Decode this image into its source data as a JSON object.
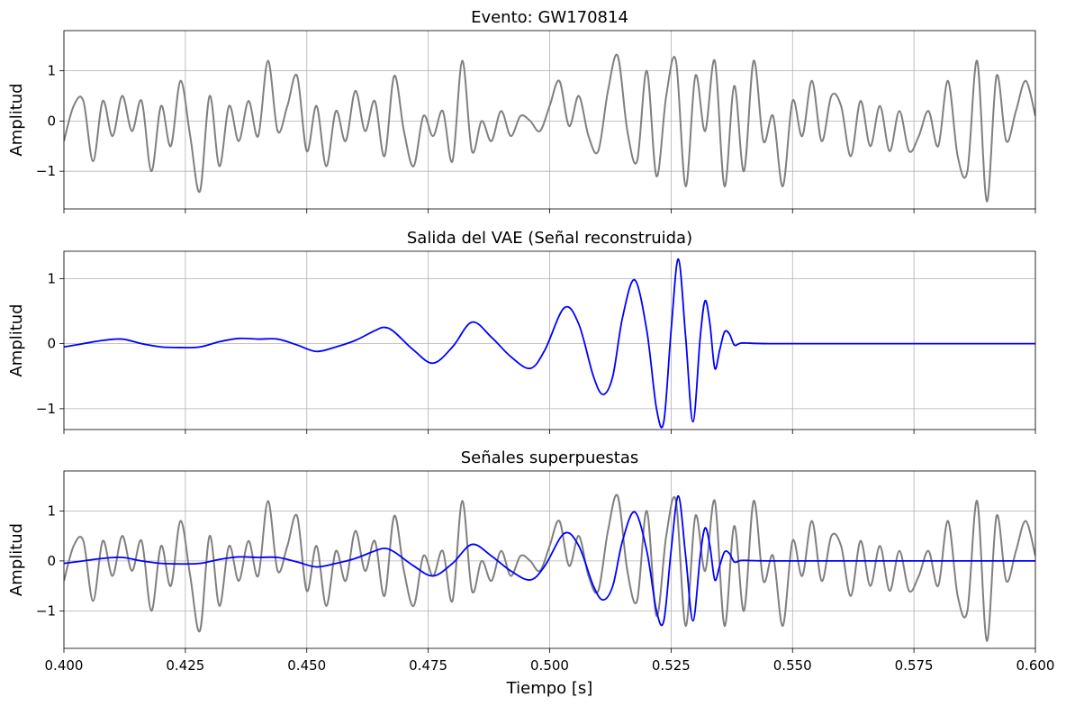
{
  "colors": {
    "raw": "#808080",
    "vae": "#0000ff",
    "grid": "#b0b0b0"
  },
  "chart_data": [
    {
      "type": "line",
      "title": "Evento: GW170814",
      "ylabel": "Amplitud",
      "xlim": [
        0.4,
        0.6
      ],
      "ylim": [
        -1.75,
        1.8
      ],
      "yticks": [
        -1,
        0,
        1
      ],
      "ytick_labels": [
        "−1",
        "0",
        "1"
      ],
      "series": [
        {
          "color": "#808080",
          "x": [
            0.4,
            0.402,
            0.404,
            0.406,
            0.408,
            0.41,
            0.412,
            0.414,
            0.416,
            0.418,
            0.42,
            0.422,
            0.424,
            0.426,
            0.428,
            0.43,
            0.432,
            0.434,
            0.436,
            0.438,
            0.44,
            0.442,
            0.444,
            0.446,
            0.448,
            0.45,
            0.452,
            0.454,
            0.456,
            0.458,
            0.46,
            0.462,
            0.464,
            0.466,
            0.468,
            0.47,
            0.472,
            0.474,
            0.476,
            0.478,
            0.48,
            0.482,
            0.484,
            0.486,
            0.488,
            0.49,
            0.492,
            0.494,
            0.496,
            0.498,
            0.5,
            0.502,
            0.504,
            0.506,
            0.508,
            0.51,
            0.512,
            0.514,
            0.516,
            0.518,
            0.52,
            0.522,
            0.524,
            0.526,
            0.528,
            0.53,
            0.532,
            0.534,
            0.536,
            0.538,
            0.54,
            0.542,
            0.544,
            0.546,
            0.548,
            0.55,
            0.552,
            0.554,
            0.556,
            0.558,
            0.56,
            0.562,
            0.564,
            0.566,
            0.568,
            0.57,
            0.572,
            0.574,
            0.576,
            0.578,
            0.58,
            0.582,
            0.584,
            0.586,
            0.588,
            0.59,
            0.592,
            0.594,
            0.596,
            0.598,
            0.6
          ],
          "y": [
            -0.4,
            0.3,
            0.4,
            -0.8,
            0.4,
            -0.3,
            0.5,
            -0.2,
            0.4,
            -1.0,
            0.3,
            -0.5,
            0.8,
            -0.3,
            -1.4,
            0.5,
            -0.9,
            0.3,
            -0.4,
            0.4,
            -0.3,
            1.2,
            -0.2,
            0.3,
            0.9,
            -0.6,
            0.3,
            -0.9,
            0.2,
            -0.4,
            0.6,
            -0.2,
            0.4,
            -0.7,
            0.9,
            -0.2,
            -0.9,
            0.1,
            -0.3,
            0.2,
            -0.8,
            1.2,
            -0.6,
            0.0,
            -0.4,
            0.2,
            -0.3,
            0.1,
            0.0,
            -0.2,
            0.3,
            0.8,
            -0.1,
            0.5,
            -0.3,
            -0.6,
            0.6,
            1.3,
            -0.2,
            -0.8,
            1.0,
            -1.1,
            0.5,
            1.2,
            -1.3,
            0.9,
            -0.2,
            1.2,
            -1.3,
            0.7,
            -1.0,
            1.2,
            -0.4,
            0.1,
            -1.3,
            0.4,
            -0.3,
            0.8,
            -0.4,
            0.5,
            0.3,
            -0.7,
            0.4,
            -0.5,
            0.3,
            -0.6,
            0.2,
            -0.6,
            -0.3,
            0.2,
            -0.5,
            0.8,
            -0.7,
            -1.0,
            1.2,
            -1.6,
            0.9,
            -0.4,
            0.2,
            0.8,
            0.1
          ]
        }
      ]
    },
    {
      "type": "line",
      "title": "Salida del VAE (Señal reconstruida)",
      "ylabel": "Amplitud",
      "xlim": [
        0.4,
        0.6
      ],
      "ylim": [
        -1.32,
        1.42
      ],
      "yticks": [
        -1,
        0,
        1
      ],
      "ytick_labels": [
        "−1",
        "0",
        "1"
      ],
      "series": [
        {
          "color": "#0000ff",
          "x": [
            0.4,
            0.404,
            0.408,
            0.412,
            0.416,
            0.42,
            0.424,
            0.428,
            0.432,
            0.436,
            0.44,
            0.444,
            0.448,
            0.452,
            0.456,
            0.46,
            0.464,
            0.466,
            0.468,
            0.472,
            0.476,
            0.48,
            0.484,
            0.488,
            0.492,
            0.496,
            0.499,
            0.503,
            0.506,
            0.509,
            0.511,
            0.513,
            0.515,
            0.5175,
            0.52,
            0.522,
            0.5235,
            0.525,
            0.5265,
            0.528,
            0.5295,
            0.531,
            0.532,
            0.533,
            0.534,
            0.535,
            0.536,
            0.537,
            0.538,
            0.539,
            0.54,
            0.545,
            0.56,
            0.58,
            0.6
          ],
          "y": [
            -0.05,
            0.0,
            0.05,
            0.07,
            0.0,
            -0.05,
            -0.06,
            -0.05,
            0.03,
            0.08,
            0.07,
            0.07,
            -0.02,
            -0.12,
            -0.05,
            0.05,
            0.2,
            0.25,
            0.18,
            -0.1,
            -0.3,
            -0.05,
            0.33,
            0.1,
            -0.2,
            -0.38,
            -0.1,
            0.55,
            0.3,
            -0.5,
            -0.78,
            -0.5,
            0.4,
            0.98,
            0.2,
            -1.0,
            -1.2,
            0.2,
            1.3,
            0.1,
            -1.2,
            0.1,
            0.66,
            0.3,
            -0.38,
            -0.1,
            0.18,
            0.15,
            -0.02,
            0.0,
            0.01,
            0.0,
            0.0,
            0.0,
            0.0
          ]
        }
      ]
    },
    {
      "type": "line",
      "title": "Señales superpuestas",
      "ylabel": "Amplitud",
      "xlabel": "Tiempo [s]",
      "xlim": [
        0.4,
        0.6
      ],
      "ylim": [
        -1.75,
        1.8
      ],
      "yticks": [
        -1,
        0,
        1
      ],
      "ytick_labels": [
        "−1",
        "0",
        "1"
      ],
      "xticks": [
        0.4,
        0.425,
        0.45,
        0.475,
        0.5,
        0.525,
        0.55,
        0.575,
        0.6
      ],
      "xtick_labels": [
        "0.400",
        "0.425",
        "0.450",
        "0.475",
        "0.500",
        "0.525",
        "0.550",
        "0.575",
        "0.600"
      ],
      "series": [
        {
          "color": "#808080",
          "ref": 0
        },
        {
          "color": "#0000ff",
          "ref": 1
        }
      ]
    }
  ]
}
